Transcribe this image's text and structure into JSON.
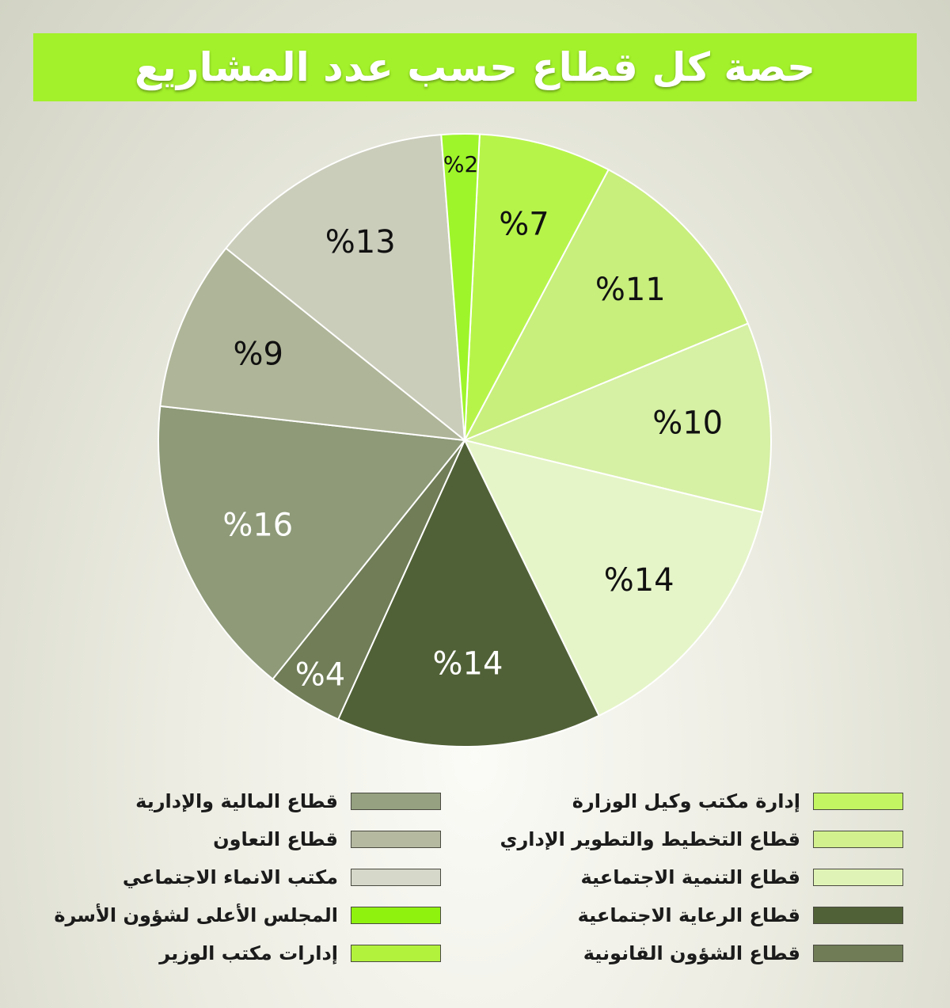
{
  "chart_data": {
    "type": "pie",
    "title": "حصة كل قطاع حسب عدد المشاريع",
    "slices": [
      {
        "label": "إدارة مكتب وكيل الوزارة",
        "value": 7,
        "value_label": "%7",
        "color": "#b7f44a",
        "text_color": "#111111"
      },
      {
        "label": "قطاع التخطيط والتطوير الإداري",
        "value": 11,
        "value_label": "%11",
        "color": "#c8ee7c",
        "text_color": "#111111"
      },
      {
        "label": "قطاع التنمية الاجتماعية",
        "value": 10,
        "value_label": "%10",
        "color": "#d6f0a4",
        "text_color": "#111111"
      },
      {
        "label": "قطاع الرعاية الاجتماعية",
        "value": 14,
        "value_label": "%14",
        "color": "#e6f5c8",
        "text_color": "#111111"
      },
      {
        "label": "قطاع الشؤون القانونية",
        "value": 14,
        "value_label": "%14",
        "color": "#516137",
        "text_color": "#ffffff"
      },
      {
        "label": "قطاع المالية والإدارية",
        "value": 4,
        "value_label": "%4",
        "color": "#707d57",
        "text_color": "#ffffff"
      },
      {
        "label": "قطاع التعاون",
        "value": 16,
        "value_label": "%16",
        "color": "#8e9a78",
        "text_color": "#ffffff"
      },
      {
        "label": "مكتب الانماء الاجتماعي",
        "value": 9,
        "value_label": "%9",
        "color": "#afb598",
        "text_color": "#111111"
      },
      {
        "label": "المجلس الأعلى لشؤون الأسرة",
        "value": 13,
        "value_label": "%13",
        "color": "#cbcdbb",
        "text_color": "#111111"
      },
      {
        "label": "إدارات مكتب الوزير",
        "value": 2,
        "value_label": "%2",
        "color": "#9ef52a",
        "text_color": "#111111"
      }
    ]
  },
  "legend": {
    "right_column": [
      {
        "label": "إدارة مكتب وكيل الوزارة",
        "color": "#c3f562"
      },
      {
        "label": "قطاع التخطيط والتطوير الإداري",
        "color": "#d2f08e"
      },
      {
        "label": "قطاع التنمية الاجتماعية",
        "color": "#e0f3b6"
      },
      {
        "label": "قطاع الرعاية الاجتماعية",
        "color": "#516137"
      },
      {
        "label": "قطاع الشؤون القانونية",
        "color": "#6f7c56"
      }
    ],
    "left_column": [
      {
        "label": "قطاع المالية والإدارية",
        "color": "#95a180"
      },
      {
        "label": "قطاع التعاون",
        "color": "#b4b9a0"
      },
      {
        "label": "مكتب الانماء الاجتماعي",
        "color": "#d6d8ca"
      },
      {
        "label": "المجلس الأعلى لشؤون الأسرة",
        "color": "#8ff20e"
      },
      {
        "label": "إدارات مكتب الوزير",
        "color": "#b2f23c"
      }
    ]
  }
}
